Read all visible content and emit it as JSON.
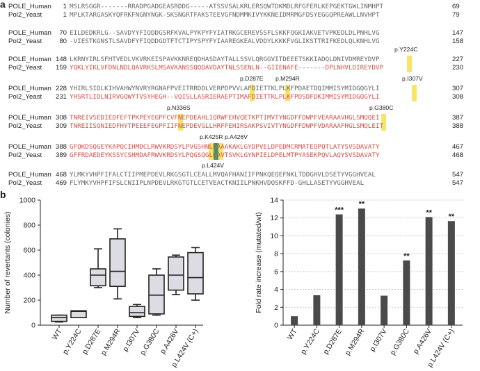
{
  "panel_a": {
    "letter": "a",
    "blocks": [
      {
        "row1": {
          "name": "POLE_Human",
          "start": "1",
          "seq": "MSLRSGGR-------RRADPGADGEASRDDG-----ATSSVSALKRLERSQWTDKMDLRFGFERLKEPGEKTGWLINMHPT",
          "end": "69",
          "red": false
        },
        "row2": {
          "name": "Pol2_Yeast",
          "start": "1",
          "seq": "MPLKTARGASKYQFRKFNGNYNGK-SKSNGRTFAKSTEEVGFNDMMKIVYKKNEIDMRMGFDSYEGGQPREAWLLNVHPT",
          "end": "79",
          "red": false
        }
      },
      {
        "row1": {
          "name": "POLE_Human",
          "start": "70",
          "seq": "EILDEDKRLG--SAVDYYFIQDDGSRFKVALPYKPYFYIATRKGCEREVSSFLSKKFQGKIAKVETVPKEDLDLPNHLVG",
          "end": "147",
          "red": false
        },
        "row2": {
          "name": "Pol2_Yeast",
          "start": "80",
          "seq": "-VIESTKGNSTLSAVDFYFIQDDGDTFTCTIPYSPYFYIAAREGKEALVDDYLKKKFVGLIKSTTRIFKEDLQLKNHLVG",
          "end": "158",
          "red": false
        }
      },
      {
        "row1": {
          "name": "POLE_Human",
          "start": "148",
          "seq": "LKRNYIRLSFHTVEDLVKVRKEISPAVKKNREQDHASDAYTALLSSVLQRGGVITDEEETSKKIADQLDNIVDMREYDVP",
          "end": "227",
          "red": false
        },
        "row2": {
          "name": "Pol2_Yeast",
          "start": "159",
          "seq": "YQKLYIKLVFDNLNDLQAVRKSLMSAVKANSSQQDAVDAYTNLSSENLN--GIIENAFE-------DPLNHVLDIREYDVP",
          "end": "230",
          "red": true
        }
      },
      {
        "row1": {
          "name": "POLE_Human",
          "start": "228",
          "seq": "YHIRLSIDLKIHVAHWYNVRYRGNAFPVEITRRDDLVERPDPVVLAFDIETTKLPLKFPDAETDQIMMISYMIDGQGYLI",
          "end": "307",
          "red": false
        },
        "row2": {
          "name": "Pol2_Yeast",
          "start": "231",
          "seq": "YHSRTLIDLNIRVGQWYTVSYHEGH--VQISLLASRIERAEPTIMAFDIETTKLPLKFPDSDFDKIMMISYMIDGQGYLI",
          "end": "308",
          "red": true
        }
      },
      {
        "row1": {
          "name": "POLE_Human",
          "start": "308",
          "seq": "TNREIVSEDIEDFEFTPKPEYEGPFCVFNEPDEAHLIQRWFEHVQETKPTIMVTYNGDFFDWPFVEARAAVHGLSMQQEI",
          "end": "387",
          "red": true
        },
        "row2": {
          "name": "Pol2_Yeast",
          "start": "309",
          "seq": "TNREIISQNIEDFHYTPEEEFEGPFIIFNEPDEVGLLHRFFEHIRSAKPSVIVTYNGDFFDWPFVDARAAFHGLSMQLEIT",
          "end": "388",
          "red": true
        }
      },
      {
        "row1": {
          "name": "POLE_Human",
          "start": "388",
          "seq": "GFQKDSQGEYKAPQCIHMDCLRWVKRDSYLPVGSHNLKAAAKAKLGYDPVELDPEDMCRMATEQPQTLATYSVSDAVATY",
          "end": "467",
          "red": true
        },
        "row2": {
          "name": "Pol2_Yeast",
          "start": "389",
          "seq": "GFFRDAEDEYKSSYCSHMDAFRWVKRDSYLPQGSQGLKAVTSVKLGYNPIELDPELMTPYASEKPQVLAQYSVSDAVATY",
          "end": "468",
          "red": true
        }
      },
      {
        "row1": {
          "name": "POLE_Human",
          "start": "468",
          "seq": "YLMKYVHPFIFALCTIIPMEPDEVLRKGSGTLCEALLMVQAFHANIIFPNKQEQEFNKLTDDGHVLDSETYVGGHVEAL",
          "end": "547",
          "red": false
        },
        "row2": {
          "name": "Pol2_Yeast",
          "start": "469",
          "seq": "FLYMKYVHPFIFSLCNIIPLNPDEVLRKGTGTLCETVEACTKNIILPNKHVDQSKFFD-GHLLASETYVGGHVEAL",
          "end": "547",
          "red": false
        }
      }
    ],
    "mutations": [
      {
        "label": "p.Y224C",
        "block": 2
      },
      {
        "label": "p.D287E",
        "block": 3
      },
      {
        "label": "p.M294R",
        "block": 3
      },
      {
        "label": "p.I307V",
        "block": 3
      },
      {
        "label": "p.N336S",
        "block": 4
      },
      {
        "label": "p.G380C",
        "block": 4
      },
      {
        "label": "p.K425R",
        "block": 5
      },
      {
        "label": "p.A426V",
        "block": 5
      },
      {
        "label": "p.L424V",
        "block": 5
      }
    ]
  },
  "panel_b": {
    "letter": "b",
    "chart_data": [
      {
        "type": "box",
        "ylabel": "Number of revertants (colonies)",
        "ylim": [
          0,
          1000
        ],
        "yticks": [
          "0",
          "200",
          "400",
          "600",
          "800",
          "1000"
        ],
        "categories": [
          "WT",
          "p.Y224C",
          "p.D287E",
          "p.M294R",
          "p.I307V",
          "p.G380C",
          "p.A426V",
          "p.L424V (C+)"
        ],
        "boxes": [
          {
            "min": 25,
            "q1": 30,
            "median": 60,
            "q3": 80,
            "max": 80
          },
          {
            "min": 60,
            "q1": 60,
            "median": 110,
            "q3": 115,
            "max": 115
          },
          {
            "min": 300,
            "q1": 315,
            "median": 400,
            "q3": 450,
            "max": 610
          },
          {
            "min": 210,
            "q1": 310,
            "median": 430,
            "q3": 690,
            "max": 770
          },
          {
            "min": 60,
            "q1": 70,
            "median": 100,
            "q3": 150,
            "max": 165
          },
          {
            "min": 80,
            "q1": 90,
            "median": 240,
            "q3": 400,
            "max": 450
          },
          {
            "min": 245,
            "q1": 280,
            "median": 400,
            "q3": 545,
            "max": 560
          },
          {
            "min": 200,
            "q1": 250,
            "median": 380,
            "q3": 580,
            "max": 620
          }
        ]
      },
      {
        "type": "bar",
        "ylabel": "Fold rate increase (mutated/wt)",
        "ylim": [
          0,
          14
        ],
        "yticks": [
          "0",
          "2",
          "4",
          "6",
          "8",
          "10",
          "12",
          "14"
        ],
        "categories": [
          "WT",
          "p.Y224C",
          "p.D287E",
          "p.M294R",
          "p.I307V",
          "p.G380C",
          "p.A426V",
          "p.L424V (C+)"
        ],
        "values": [
          1.0,
          3.35,
          12.4,
          13.05,
          3.3,
          7.25,
          12.1,
          11.65
        ],
        "annotations": [
          "",
          "",
          "***",
          "**",
          "",
          "**",
          "**",
          "**"
        ],
        "grid": true
      }
    ]
  }
}
